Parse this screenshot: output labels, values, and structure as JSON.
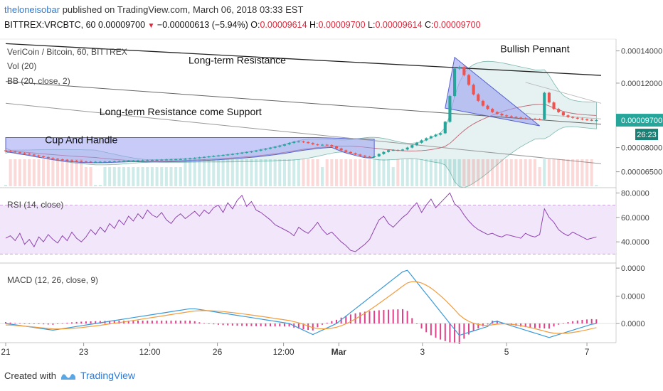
{
  "header": {
    "author": "theloneisobar",
    "published_text": "published on TradingView.com, March 06, 2018 03:33 EST",
    "symbol_line": "BITTREX:VRCBTC, 60",
    "last_price": "0.00009700",
    "change": "−0.00000613 (−5.94%)",
    "open_label": "O:",
    "open_value": "0.00009614",
    "high_label": "H:",
    "high_value": "0.00009700",
    "low_label": "L:",
    "low_value": "0.00009614",
    "close_label": "C:",
    "close_value": "0.00009700"
  },
  "footer": {
    "created_with": "Created with",
    "brand": "TradingView"
  },
  "colors": {
    "up": "#26a69a",
    "down": "#ef5350",
    "band": "#9aa0f0",
    "bb_fill": "#cfe8e6",
    "rsi_band": "#f2e6fb",
    "rsi_line": "#8e44ad",
    "macd_line": "#3a9ad9",
    "signal_line": "#f39c3c",
    "hist": "#e0408a",
    "price_tag": "#26a69a"
  },
  "chart_data": [
    {
      "type": "candlestick",
      "title": "VeriCoin / Bitcoin, 60, BITTREX",
      "indicator_labels": [
        "Vol (20)",
        "BB (20, close, 2)"
      ],
      "ylim": [
        5.6e-05,
        0.000146
      ],
      "y_ticks": [
        "0.00014000",
        "0.00012000",
        "0.00009700",
        "0.00008000",
        "0.00006500"
      ],
      "y_tick_values": [
        0.00014,
        0.00012,
        9.7e-05,
        8e-05,
        6.5e-05
      ],
      "last_value_tag": "0.00009700",
      "countdown_tag": "26:23",
      "x_ticks": [
        "21",
        "23",
        "12:00",
        "26",
        "12:00",
        "Mar",
        "3",
        "5",
        "7"
      ],
      "x_tick_positions": [
        0,
        16.5,
        30.5,
        44.8,
        58.8,
        70.5,
        88.2,
        106,
        123
      ],
      "x_range": [
        0,
        126
      ],
      "close": [
        7.81e-05,
        7.76e-05,
        7.71e-05,
        7.66e-05,
        7.62e-05,
        7.57e-05,
        7.51e-05,
        7.46e-05,
        7.41e-05,
        7.36e-05,
        7.31e-05,
        7.27e-05,
        7.24e-05,
        7.21e-05,
        7.18e-05,
        7.16e-05,
        7.14e-05,
        7.13e-05,
        7.12e-05,
        7.12e-05,
        7.12e-05,
        7.13e-05,
        7.14e-05,
        7.15e-05,
        7.16e-05,
        7.17e-05,
        7.18e-05,
        7.19e-05,
        7.2e-05,
        7.21e-05,
        7.22e-05,
        7.23e-05,
        7.24e-05,
        7.25e-05,
        7.26e-05,
        7.27e-05,
        7.28e-05,
        7.29e-05,
        7.31e-05,
        7.33e-05,
        7.36e-05,
        7.39e-05,
        7.42e-05,
        7.45e-05,
        7.48e-05,
        7.51e-05,
        7.54e-05,
        7.57e-05,
        7.6e-05,
        7.64e-05,
        7.68e-05,
        7.72e-05,
        7.76e-05,
        7.81e-05,
        7.87e-05,
        7.93e-05,
        7.99e-05,
        8.05e-05,
        8.12e-05,
        8.2e-05,
        8.29e-05,
        8.36e-05,
        8.38e-05,
        8.34e-05,
        8.28e-05,
        8.2e-05,
        8.17e-05,
        8.18e-05,
        8.16e-05,
        8.07e-05,
        7.95e-05,
        7.83e-05,
        7.73e-05,
        7.65e-05,
        7.57e-05,
        7.5e-05,
        7.44e-05,
        7.41e-05,
        7.46e-05,
        7.6e-05,
        7.73e-05,
        7.84e-05,
        7.85e-05,
        7.82e-05,
        7.88e-05,
        8e-05,
        8.15e-05,
        8.3e-05,
        8.45e-05,
        8.58e-05,
        8.7e-05,
        8.8e-05,
        8.89e-05,
        9.6e-05,
        0.000112,
        0.000129,
        0.00013,
        0.000125,
        0.000119,
        0.000113,
        0.000109,
        0.000106,
        0.000104,
        0.000102,
        0.000101,
        0.0001,
        9.95e-05,
        9.9e-05,
        9.86e-05,
        9.82e-05,
        9.8e-05,
        9.78e-05,
        9.76e-05,
        9.75e-05,
        0.000114,
        0.000108,
        0.000104,
        0.000102,
        0.0001,
        9.9e-05,
        9.85e-05,
        9.8e-05,
        9.75e-05,
        9.72e-05,
        9.7e-05,
        9.7e-05
      ]
    },
    {
      "type": "line",
      "title": "RSI (14, close)",
      "ylim": [
        25,
        82
      ],
      "y_ticks": [
        "80.0000",
        "60.0000",
        "40.0000"
      ],
      "y_tick_values": [
        80,
        60,
        40
      ],
      "band": [
        30,
        70
      ],
      "values": [
        43,
        45,
        41,
        47,
        38,
        42,
        36,
        44,
        40,
        46,
        42,
        39,
        45,
        41,
        48,
        43,
        40,
        44,
        50,
        46,
        52,
        48,
        55,
        51,
        58,
        54,
        61,
        57,
        63,
        59,
        66,
        62,
        60,
        64,
        58,
        55,
        60,
        63,
        59,
        62,
        65,
        61,
        66,
        63,
        68,
        70,
        64,
        72,
        67,
        74,
        78,
        69,
        73,
        66,
        64,
        61,
        58,
        54,
        52,
        50,
        48,
        45,
        52,
        49,
        47,
        51,
        56,
        50,
        46,
        48,
        44,
        40,
        37,
        33,
        32,
        35,
        38,
        42,
        50,
        58,
        61,
        55,
        52,
        56,
        60,
        63,
        68,
        72,
        64,
        70,
        75,
        68,
        72,
        76,
        80,
        71,
        68,
        62,
        57,
        53,
        50,
        48,
        46,
        47,
        45,
        44,
        46,
        45,
        44,
        43,
        47,
        45,
        44,
        46,
        67,
        60,
        56,
        50,
        47,
        45,
        48,
        46,
        44,
        42,
        43,
        44
      ]
    },
    {
      "type": "line",
      "title": "MACD (12, 26, close, 9)",
      "ylim": [
        -2.4e-06,
        7.8e-06
      ],
      "y_ticks": [
        "0.0000",
        "0.0000",
        "0.0000"
      ],
      "y_tick_values": [
        7.5e-06,
        3.7e-06,
        0.0
      ],
      "series": [
        {
          "name": "MACD",
          "values": [
            0.0,
            -9e-08,
            -1.8e-07,
            -2.7e-07,
            -3.6e-07,
            -4.5e-07,
            -5.4e-07,
            -6.3e-07,
            -7.2e-07,
            -8.1e-07,
            -9e-07,
            -8e-07,
            -7e-07,
            -6e-07,
            -5e-07,
            -4e-07,
            -3e-07,
            -2e-07,
            -1e-07,
            0.0,
            1e-07,
            2e-07,
            3e-07,
            4e-07,
            5e-07,
            6e-07,
            7e-07,
            8e-07,
            9e-07,
            1e-06,
            1.1e-06,
            1.2e-06,
            1.3e-06,
            1.4e-06,
            1.5e-06,
            1.6e-06,
            1.7e-06,
            1.8e-06,
            1.9e-06,
            2e-06,
            2e-06,
            1.9e-06,
            1.8e-06,
            1.7e-06,
            1.6e-06,
            1.5e-06,
            1.4e-06,
            1.3e-06,
            1.2e-06,
            1.1e-06,
            1e-06,
            9e-07,
            8e-07,
            7e-07,
            6e-07,
            5e-07,
            4e-07,
            3e-07,
            2e-07,
            1e-07,
            0.0,
            -3e-07,
            -6e-07,
            -9e-07,
            -1.2e-06,
            -1.5e-06,
            -1.2e-06,
            -9e-07,
            -6e-07,
            -3e-07,
            0.0,
            5e-07,
            1e-06,
            1.5e-06,
            2e-06,
            2.5e-06,
            3e-06,
            3.5e-06,
            4e-06,
            4.5e-06,
            5e-06,
            5.5e-06,
            6e-06,
            6.5e-06,
            7e-06,
            7.2e-06,
            6.4e-06,
            5.6e-06,
            4.8e-06,
            4e-06,
            3.2e-06,
            2.4e-06,
            1.6e-06,
            8e-07,
            0.0,
            -8e-07,
            -1.6e-06,
            -1.4e-06,
            -1.2e-06,
            -1e-06,
            -8e-07,
            -6e-07,
            -4e-07,
            2e-07,
            3e-07,
            1e-07,
            -1e-07,
            -3e-07,
            -5e-07,
            -7e-07,
            -9e-07,
            -1.1e-06,
            -1.3e-06,
            -1.5e-06,
            -1.7e-06,
            -1.9e-06,
            -1.7e-06,
            -1.5e-06,
            -1.3e-06,
            -1.1e-06,
            -9e-07,
            -7e-07,
            -5e-07,
            -3e-07,
            -1e-07,
            0.0
          ]
        },
        {
          "name": "Signal",
          "values": [
            -2e-07,
            -2.2e-07,
            -2.6e-07,
            -3.1e-07,
            -3.6e-07,
            -4.2e-07,
            -4.8e-07,
            -5.4e-07,
            -6.1e-07,
            -6.7e-07,
            -7.3e-07,
            -7.4e-07,
            -7.3e-07,
            -7e-07,
            -6.6e-07,
            -6.1e-07,
            -5.5e-07,
            -4.8e-07,
            -4e-07,
            -3.2e-07,
            -2.4e-07,
            -1.5e-07,
            -6e-08,
            3e-08,
            1.2e-07,
            2.2e-07,
            3.1e-07,
            4.1e-07,
            5.1e-07,
            6.1e-07,
            7.1e-07,
            8.1e-07,
            9.1e-07,
            1.01e-06,
            1.11e-06,
            1.21e-06,
            1.31e-06,
            1.41e-06,
            1.51e-06,
            1.61e-06,
            1.69e-06,
            1.73e-06,
            1.75e-06,
            1.74e-06,
            1.71e-06,
            1.67e-06,
            1.62e-06,
            1.55e-06,
            1.48e-06,
            1.4e-06,
            1.32e-06,
            1.24e-06,
            1.15e-06,
            1.06e-06,
            9.7e-07,
            8.8e-07,
            7.8e-07,
            6.9e-07,
            5.9e-07,
            5e-07,
            4e-07,
            2.6e-07,
            9e-08,
            -1.1e-07,
            -3.3e-07,
            -5.6e-07,
            -6.9e-07,
            -7.3e-07,
            -7.1e-07,
            -6.3e-07,
            -5e-07,
            -3e-07,
            -4e-08,
            2.7e-07,
            6.2e-07,
            1e-06,
            1.4e-06,
            1.82e-06,
            2.26e-06,
            2.71e-06,
            3.17e-06,
            3.63e-06,
            4.1e-06,
            4.58e-06,
            5.06e-06,
            5.49e-06,
            5.67e-06,
            5.65e-06,
            5.48e-06,
            5.18e-06,
            4.79e-06,
            4.31e-06,
            3.77e-06,
            3.18e-06,
            2.54e-06,
            1.87e-06,
            1.17e-06,
            6.6e-07,
            2.9e-07,
            3e-08,
            -1.4e-07,
            -2.3e-07,
            -2.7e-07,
            -1.8e-07,
            -9e-08,
            -5e-08,
            -6e-08,
            -1.1e-07,
            -1.9e-07,
            -2.9e-07,
            -4.1e-07,
            -5.5e-07,
            -7e-07,
            -8.6e-07,
            -1.03e-06,
            -1.2e-06,
            -1.3e-06,
            -1.34e-06,
            -1.33e-06,
            -1.29e-06,
            -1.21e-06,
            -1.11e-06,
            -9.9e-07,
            -8.5e-07,
            -7e-07,
            -5.6e-07
          ]
        }
      ],
      "histogram": [
        2e-07,
        1.3e-07,
        8e-08,
        4e-08,
        0.0,
        -3e-08,
        -6e-08,
        -9e-08,
        -1.1e-07,
        -1.4e-07,
        -1.7e-07,
        -6e-08,
        3e-08,
        1e-07,
        1.6e-07,
        2.1e-07,
        2.5e-07,
        2.8e-07,
        3e-07,
        3.2e-07,
        3.4e-07,
        3.5e-07,
        3.6e-07,
        3.7e-07,
        3.8e-07,
        3.8e-07,
        3.9e-07,
        3.9e-07,
        3.9e-07,
        3.9e-07,
        3.9e-07,
        3.9e-07,
        3.9e-07,
        3.9e-07,
        3.9e-07,
        3.9e-07,
        3.9e-07,
        3.9e-07,
        3.9e-07,
        3.9e-07,
        3.1e-07,
        1.7e-07,
        5e-08,
        -4e-08,
        -1.1e-07,
        -1.7e-07,
        -2.2e-07,
        -2.5e-07,
        -2.8e-07,
        -3e-07,
        -3.2e-07,
        -3.4e-07,
        -3.5e-07,
        -3.6e-07,
        -3.7e-07,
        -3.8e-07,
        -3.8e-07,
        -3.9e-07,
        -3.9e-07,
        -4e-07,
        -4e-07,
        -5.6e-07,
        -6.9e-07,
        -7.9e-07,
        -8.7e-07,
        -9.4e-07,
        -5.1e-07,
        -1.7e-07,
        1.1e-07,
        3.3e-07,
        5e-07,
        8e-07,
        1.04e-06,
        1.23e-06,
        1.38e-06,
        1.5e-06,
        1.6e-06,
        1.68e-06,
        1.74e-06,
        1.79e-06,
        1.83e-06,
        1.87e-06,
        1.9e-06,
        1.92e-06,
        1.94e-06,
        1.71e-06,
        7.3e-07,
        -5e-08,
        -6.8e-07,
        -1.18e-06,
        -1.59e-06,
        -1.91e-06,
        -2.17e-06,
        -2.38e-06,
        -2.54e-06,
        -2.67e-06,
        -2.77e-06,
        -2.06e-06,
        -1.49e-06,
        -1.03e-06,
        -6.6e-07,
        -3.7e-07,
        -1.3e-07,
        3.8e-07,
        3.9e-07,
        1.5e-07,
        -4e-08,
        -1.9e-07,
        -3.1e-07,
        -4.1e-07,
        -4.9e-07,
        -5.5e-07,
        -6e-07,
        -6.4e-07,
        -6.7e-07,
        -7e-07,
        -4e-07,
        -1.6e-07,
        3e-08,
        1.9e-07,
        3.1e-07,
        4.1e-07,
        4.9e-07,
        5.5e-07,
        6e-07,
        5.6e-07
      ]
    }
  ],
  "annotations": [
    {
      "label": "Long-term Resistance",
      "x": 49,
      "y": 0.0001322
    },
    {
      "label": "Bullish Pennant",
      "x": 112,
      "y": 0.0001392
    },
    {
      "label": "Long-term Resistance come Support",
      "x": 37,
      "y": 0.0001002
    },
    {
      "label": "Cup And Handle",
      "x": 16,
      "y": 8.26e-05
    }
  ]
}
